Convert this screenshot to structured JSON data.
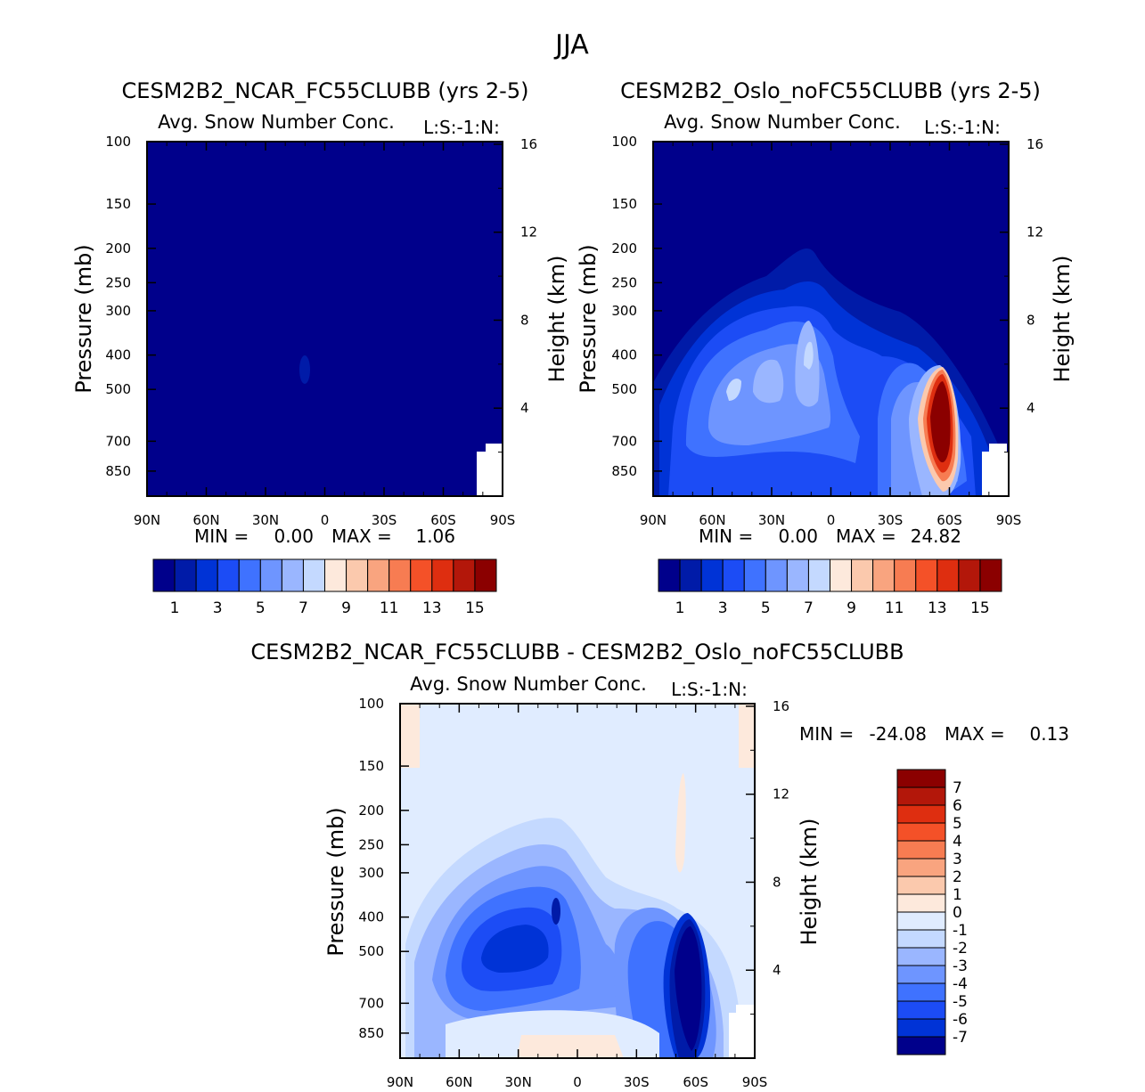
{
  "page_title": "JJA",
  "palette": {
    "full": [
      "#00008b",
      "#001ba8",
      "#0033d6",
      "#1c4cf5",
      "#3f72ff",
      "#6e95ff",
      "#9ab6ff",
      "#c4d9ff",
      "#e0ecff",
      "#fde9dc",
      "#fbc9ad",
      "#f9a47f",
      "#f77c52",
      "#f45128",
      "#de2e10",
      "#b3170a",
      "#8b0000"
    ],
    "blue_field": "#00008b",
    "white": "#ffffff"
  },
  "panels": [
    {
      "title": "CESM2B2_NCAR_FC55CLUBB (yrs 2-5)",
      "subtitle": "Avg. Snow Number Conc.",
      "units_label": "L:S:-1:N:",
      "stats": {
        "min_label": "MIN =",
        "min_value": "0.00",
        "max_label": "MAX =",
        "max_value": "1.06"
      },
      "colorbar_labels": [
        "1",
        "3",
        "5",
        "7",
        "9",
        "11",
        "13",
        "15"
      ]
    },
    {
      "title": "CESM2B2_Oslo_noFC55CLUBB (yrs 2-5)",
      "subtitle": "Avg. Snow Number Conc.",
      "units_label": "L:S:-1:N:",
      "stats": {
        "min_label": "MIN =",
        "min_value": "0.00",
        "max_label": "MAX =",
        "max_value": "24.82"
      },
      "colorbar_labels": [
        "1",
        "3",
        "5",
        "7",
        "9",
        "11",
        "13",
        "15"
      ]
    },
    {
      "title": "CESM2B2_NCAR_FC55CLUBB - CESM2B2_Oslo_noFC55CLUBB",
      "subtitle": "Avg. Snow Number Conc.",
      "units_label": "L:S:-1:N:",
      "stats": {
        "min_label": "MIN =",
        "min_value": "-24.08",
        "max_label": "MAX =",
        "max_value": "0.13"
      },
      "colorbar_labels": [
        "7",
        "6",
        "5",
        "4",
        "3",
        "2",
        "1",
        "0",
        "-1",
        "-2",
        "-3",
        "-4",
        "-5",
        "-6",
        "-7"
      ]
    }
  ],
  "chart_data": [
    {
      "type": "heatmap",
      "title": "CESM2B2_NCAR_FC55CLUBB (yrs 2-5)",
      "xlabel": "",
      "ylabel": "Pressure (mb)",
      "y2label": "Height (km)",
      "x_ticks": [
        "90N",
        "60N",
        "30N",
        "0",
        "30S",
        "60S",
        "90S"
      ],
      "y_ticks": [
        100,
        150,
        200,
        250,
        300,
        400,
        500,
        700,
        850
      ],
      "y2_ticks": [
        16,
        12,
        8,
        4
      ],
      "ylim": [
        100,
        1000
      ],
      "contour_levels": [
        1,
        2,
        3,
        4,
        5,
        6,
        7,
        8,
        9,
        10,
        11,
        12,
        13,
        14,
        15
      ],
      "min": 0.0,
      "max": 1.06
    },
    {
      "type": "heatmap",
      "title": "CESM2B2_Oslo_noFC55CLUBB (yrs 2-5)",
      "xlabel": "",
      "ylabel": "Pressure (mb)",
      "y2label": "Height (km)",
      "x_ticks": [
        "90N",
        "60N",
        "30N",
        "0",
        "30S",
        "60S",
        "90S"
      ],
      "y_ticks": [
        100,
        150,
        200,
        250,
        300,
        400,
        500,
        700,
        850
      ],
      "y2_ticks": [
        16,
        12,
        8,
        4
      ],
      "ylim": [
        100,
        1000
      ],
      "contour_levels": [
        1,
        2,
        3,
        4,
        5,
        6,
        7,
        8,
        9,
        10,
        11,
        12,
        13,
        14,
        15
      ],
      "min": 0.0,
      "max": 24.82
    },
    {
      "type": "heatmap",
      "title": "CESM2B2_NCAR_FC55CLUBB - CESM2B2_Oslo_noFC55CLUBB",
      "xlabel": "",
      "ylabel": "Pressure (mb)",
      "y2label": "Height (km)",
      "x_ticks": [
        "90N",
        "60N",
        "30N",
        "0",
        "30S",
        "60S",
        "90S"
      ],
      "y_ticks": [
        100,
        150,
        200,
        250,
        300,
        400,
        500,
        700,
        850
      ],
      "y2_ticks": [
        16,
        12,
        8,
        4
      ],
      "ylim": [
        100,
        1000
      ],
      "contour_levels": [
        -7,
        -6,
        -5,
        -4,
        -3,
        -2,
        -1,
        0,
        1,
        2,
        3,
        4,
        5,
        6,
        7
      ],
      "min": -24.08,
      "max": 0.13
    }
  ]
}
